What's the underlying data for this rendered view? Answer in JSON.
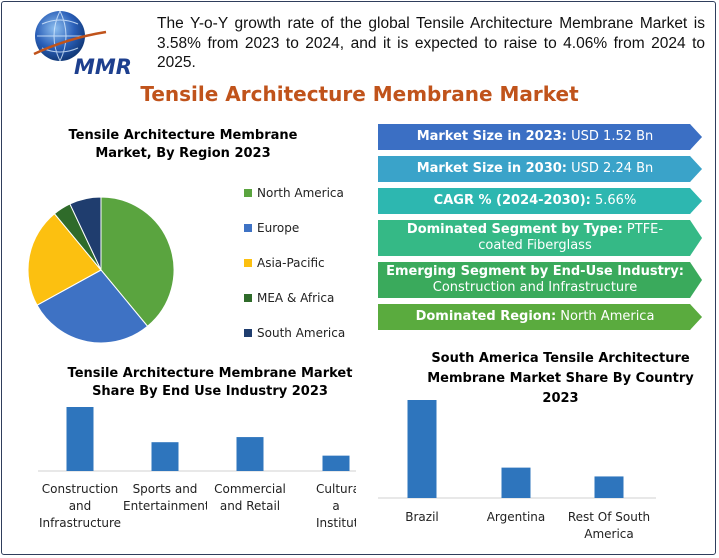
{
  "intro_text": "The Y-o-Y growth rate of the global Tensile Architecture Membrane Market is 3.58% from 2023 to 2024, and it is expected to raise to 4.06% from 2024 to 2025.",
  "logo_text": "MMR",
  "main_title": "Tensile Architecture Membrane Market",
  "banners": [
    {
      "label": "Market Size in 2023:",
      "value": "USD 1.52 Bn",
      "color": "#3b6fc4"
    },
    {
      "label": "Market Size in 2030:",
      "value": "USD 2.24 Bn",
      "color": "#3aa3c9"
    },
    {
      "label": "CAGR % (2024-2030):",
      "value": "5.66%",
      "color": "#2db7b0"
    },
    {
      "label": "Dominated Segment by Type:",
      "value": "PTFE-coated Fiberglass",
      "color": "#35b986"
    },
    {
      "label": "Emerging Segment by End-Use Industry:",
      "value": "Construction and Infrastructure",
      "color": "#3aaa5c"
    },
    {
      "label": "Dominated Region:",
      "value": "North America",
      "color": "#5aab3e"
    }
  ],
  "chart_data": [
    {
      "type": "pie",
      "title": "Tensile Architecture Membrane Market, By Region 2023",
      "categories": [
        "North America",
        "Europe",
        "Asia-Pacific",
        "MEA & Africa",
        "South America"
      ],
      "values": [
        39,
        28,
        22,
        4,
        7
      ],
      "colors": [
        "#5aa43f",
        "#3e72c4",
        "#fcc010",
        "#2f6b2a",
        "#1f3d6e"
      ],
      "legend": "right"
    },
    {
      "type": "bar",
      "title": "Tensile Architecture Membrane Market Share By End Use Industry 2023",
      "categories": [
        "Construction\nand\nInfrastructure",
        "Sports and\nEntertainment",
        "Commercial\nand Retail",
        "Cultural a\nInstitution"
      ],
      "values": [
        100,
        45,
        53,
        24
      ],
      "ylim": [
        0,
        100
      ],
      "color": "#2e75bd"
    },
    {
      "type": "bar",
      "title": "South America Tensile Architecture Membrane Market Share By Country 2023",
      "categories": [
        "Brazil",
        "Argentina",
        "Rest Of South\nAmerica"
      ],
      "values": [
        100,
        31,
        22
      ],
      "ylim": [
        0,
        100
      ],
      "color": "#2e75bd"
    }
  ]
}
